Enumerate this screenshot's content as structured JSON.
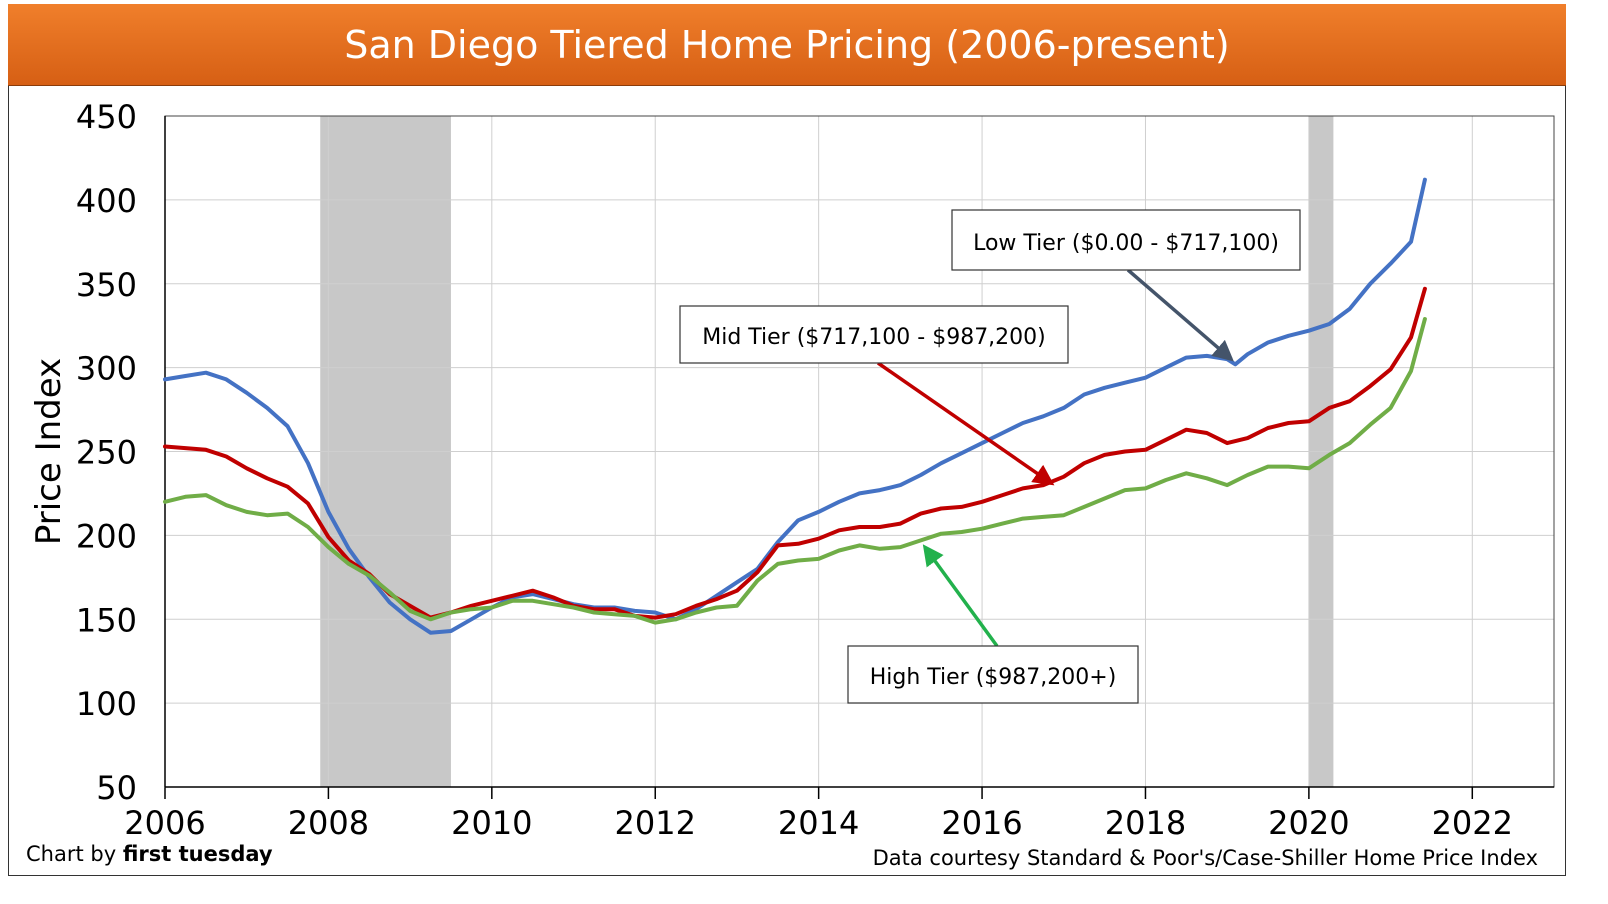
{
  "chart_data": {
    "type": "line",
    "title": "San Diego Tiered Home Pricing (2006-present)",
    "ylabel": "Price Index",
    "xlabel": "",
    "xlim": [
      2006,
      2023
    ],
    "ylim": [
      50,
      450
    ],
    "xticks": [
      "2006",
      "2008",
      "2010",
      "2012",
      "2014",
      "2016",
      "2018",
      "2020",
      "2022"
    ],
    "yticks": [
      "50",
      "100",
      "150",
      "200",
      "250",
      "300",
      "350",
      "400",
      "450"
    ],
    "grid": true,
    "shaded_periods": [
      [
        2007.9,
        2009.5
      ],
      [
        2020.0,
        2020.3
      ]
    ],
    "series": [
      {
        "name": "Low Tier ($0.00 - $717,100)",
        "color": "#4472c4",
        "x": [
          2006.0,
          2006.25,
          2006.5,
          2006.75,
          2007.0,
          2007.25,
          2007.5,
          2007.75,
          2008.0,
          2008.25,
          2008.5,
          2008.75,
          2009.0,
          2009.25,
          2009.5,
          2009.75,
          2010.0,
          2010.25,
          2010.5,
          2010.75,
          2011.0,
          2011.25,
          2011.5,
          2011.75,
          2012.0,
          2012.25,
          2012.5,
          2012.75,
          2013.0,
          2013.25,
          2013.5,
          2013.75,
          2014.0,
          2014.25,
          2014.5,
          2014.75,
          2015.0,
          2015.25,
          2015.5,
          2015.75,
          2016.0,
          2016.25,
          2016.5,
          2016.75,
          2017.0,
          2017.25,
          2017.5,
          2017.75,
          2018.0,
          2018.25,
          2018.5,
          2018.75,
          2019.0,
          2019.1,
          2019.25,
          2019.5,
          2019.75,
          2020.0,
          2020.25,
          2020.5,
          2020.75,
          2021.0,
          2021.25,
          2021.42
        ],
        "values": [
          293,
          295,
          297,
          293,
          285,
          276,
          265,
          243,
          214,
          192,
          175,
          160,
          150,
          142,
          143,
          150,
          157,
          163,
          165,
          162,
          159,
          157,
          157,
          155,
          154,
          150,
          156,
          164,
          172,
          180,
          196,
          209,
          214,
          220,
          225,
          227,
          230,
          236,
          243,
          249,
          255,
          261,
          267,
          271,
          276,
          284,
          288,
          291,
          294,
          300,
          306,
          307,
          305,
          302,
          308,
          315,
          319,
          322,
          326,
          335,
          350,
          362,
          375,
          412
        ]
      },
      {
        "name": "Mid Tier ($717,100 - $987,200)",
        "color": "#c00000",
        "x": [
          2006.0,
          2006.25,
          2006.5,
          2006.75,
          2007.0,
          2007.25,
          2007.5,
          2007.75,
          2008.0,
          2008.25,
          2008.5,
          2008.75,
          2009.0,
          2009.25,
          2009.5,
          2009.75,
          2010.0,
          2010.25,
          2010.5,
          2010.75,
          2011.0,
          2011.25,
          2011.5,
          2011.75,
          2012.0,
          2012.25,
          2012.5,
          2012.75,
          2013.0,
          2013.25,
          2013.5,
          2013.75,
          2014.0,
          2014.25,
          2014.5,
          2014.75,
          2015.0,
          2015.25,
          2015.5,
          2015.75,
          2016.0,
          2016.25,
          2016.5,
          2016.75,
          2017.0,
          2017.25,
          2017.5,
          2017.75,
          2018.0,
          2018.25,
          2018.5,
          2018.75,
          2019.0,
          2019.25,
          2019.5,
          2019.75,
          2020.0,
          2020.25,
          2020.5,
          2020.75,
          2021.0,
          2021.25,
          2021.42
        ],
        "values": [
          253,
          252,
          251,
          247,
          240,
          234,
          229,
          219,
          199,
          185,
          177,
          165,
          158,
          151,
          154,
          158,
          161,
          164,
          167,
          163,
          158,
          156,
          156,
          152,
          151,
          153,
          158,
          162,
          167,
          178,
          194,
          195,
          198,
          203,
          205,
          205,
          207,
          213,
          216,
          217,
          220,
          224,
          228,
          230,
          235,
          243,
          248,
          250,
          251,
          257,
          263,
          261,
          255,
          258,
          264,
          267,
          268,
          276,
          280,
          289,
          299,
          318,
          347
        ]
      },
      {
        "name": "High Tier ($987,200+)",
        "color": "#70ad47",
        "x": [
          2006.0,
          2006.25,
          2006.5,
          2006.75,
          2007.0,
          2007.25,
          2007.5,
          2007.75,
          2008.0,
          2008.25,
          2008.5,
          2008.75,
          2009.0,
          2009.25,
          2009.5,
          2009.75,
          2010.0,
          2010.25,
          2010.5,
          2010.75,
          2011.0,
          2011.25,
          2011.5,
          2011.75,
          2012.0,
          2012.25,
          2012.5,
          2012.75,
          2013.0,
          2013.25,
          2013.5,
          2013.75,
          2014.0,
          2014.25,
          2014.5,
          2014.75,
          2015.0,
          2015.25,
          2015.5,
          2015.75,
          2016.0,
          2016.25,
          2016.5,
          2016.75,
          2017.0,
          2017.25,
          2017.5,
          2017.75,
          2018.0,
          2018.25,
          2018.5,
          2018.75,
          2019.0,
          2019.25,
          2019.5,
          2019.75,
          2020.0,
          2020.25,
          2020.5,
          2020.75,
          2021.0,
          2021.25,
          2021.42
        ],
        "values": [
          220,
          223,
          224,
          218,
          214,
          212,
          213,
          205,
          193,
          183,
          176,
          166,
          155,
          150,
          154,
          156,
          157,
          161,
          161,
          159,
          157,
          154,
          153,
          152,
          148,
          150,
          154,
          157,
          158,
          173,
          183,
          185,
          186,
          191,
          194,
          192,
          193,
          197,
          201,
          202,
          204,
          207,
          210,
          211,
          212,
          217,
          222,
          227,
          228,
          233,
          237,
          234,
          230,
          236,
          241,
          241,
          240,
          248,
          255,
          266,
          276,
          298,
          329
        ]
      }
    ],
    "annotations": [
      {
        "label": "Low Tier ($0.00 - $717,100)",
        "arrow_to_x": 2019.05,
        "arrow_to_y": 305
      },
      {
        "label": "Mid Tier ($717,100 - $987,200)",
        "arrow_to_x": 2016.85,
        "arrow_to_y": 231
      },
      {
        "label": "High Tier ($987,200+)",
        "arrow_to_x": 2015.3,
        "arrow_to_y": 193
      }
    ]
  },
  "footer": {
    "credit_prefix": "Chart by ",
    "credit_name": "first tuesday",
    "source": "Data courtesy Standard & Poor's/Case-Shiller Home Price Index"
  }
}
